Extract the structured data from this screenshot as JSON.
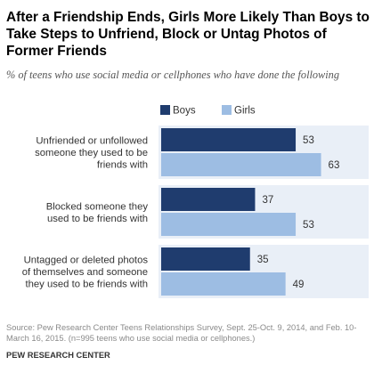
{
  "title": "After a Friendship Ends, Girls More Likely Than Boys to Take Steps to Unfriend, Block or Untag Photos of Former Friends",
  "subtitle": "% of teens who use social media or cellphones who have done the following",
  "source": "Source: Pew Research Center Teens Relationships Survey, Sept. 25-Oct. 9, 2014, and Feb. 10-March 16, 2015. (n=995 teens who use social media or cellphones.)",
  "credit": "PEW RESEARCH CENTER",
  "colors": {
    "boys": "#1f3c6e",
    "girls": "#9dbde3",
    "panel": "#e9eff7"
  },
  "chart_data": {
    "type": "bar",
    "orientation": "horizontal",
    "categories": [
      [
        "Unfriended or unfollowed",
        "someone they used to be",
        "friends with"
      ],
      [
        "Blocked someone they",
        "used to be friends with"
      ],
      [
        "Untagged or deleted  photos",
        "of themselves and someone",
        "they used to be friends with"
      ]
    ],
    "series": [
      {
        "name": "Boys",
        "values": [
          53,
          37,
          35
        ]
      },
      {
        "name": "Girls",
        "values": [
          63,
          53,
          49
        ]
      }
    ],
    "xlim": [
      0,
      100
    ],
    "grid": false,
    "legend": "top"
  }
}
